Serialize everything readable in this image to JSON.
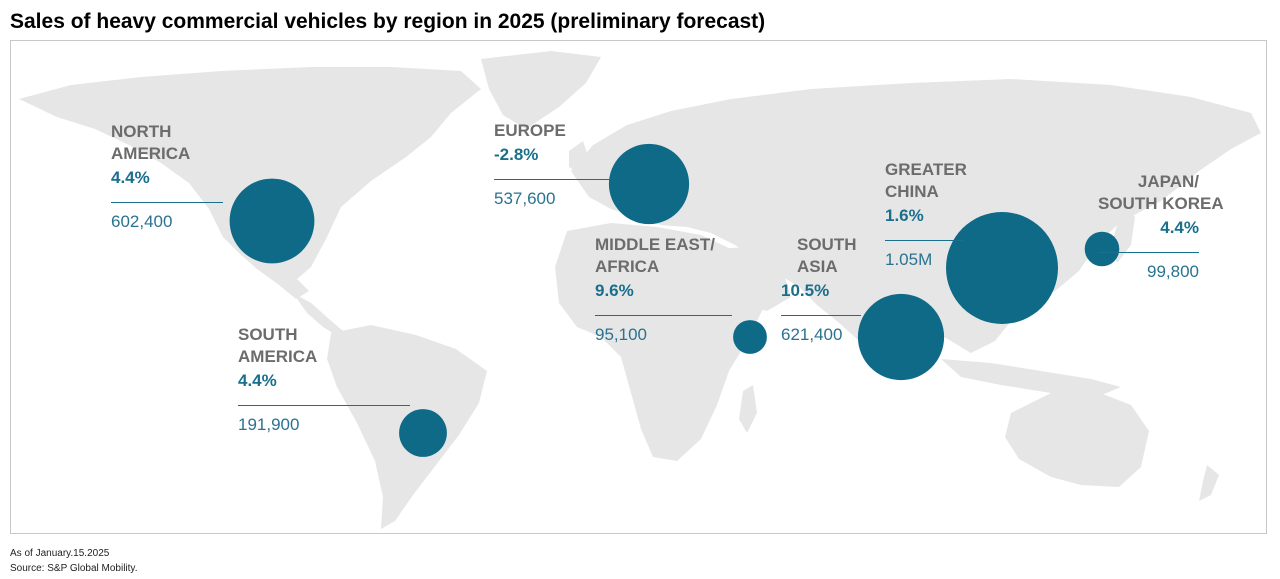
{
  "title": "Sales of heavy commercial vehicles by region in 2025 (preliminary forecast)",
  "footnote": {
    "as_of": "As of January.15.2025",
    "source": "Source: S&P Global Mobility."
  },
  "colors": {
    "bubble": "#0e6a87",
    "map": "#e6e6e6",
    "region_name": "#6c6c6c",
    "figure": "#1a6f8c"
  },
  "chart_data": {
    "type": "bubble-map",
    "title": "Sales of heavy commercial vehicles by region in 2025 (preliminary forecast)",
    "series": [
      {
        "region": "North America",
        "growth_pct": 4.4,
        "units": 602400
      },
      {
        "region": "South America",
        "growth_pct": 4.4,
        "units": 191900
      },
      {
        "region": "Europe",
        "growth_pct": -2.8,
        "units": 537600
      },
      {
        "region": "Middle East/Africa",
        "growth_pct": 9.6,
        "units": 95100
      },
      {
        "region": "South Asia",
        "growth_pct": 10.5,
        "units": 621400
      },
      {
        "region": "Greater China",
        "growth_pct": 1.6,
        "units": 1050000
      },
      {
        "region": "Japan/South Korea",
        "growth_pct": 4.4,
        "units": 99800
      }
    ]
  },
  "labels": {
    "na": {
      "line1": "NORTH",
      "line2": "AMERICA",
      "pct": "4.4%",
      "value": "602,400"
    },
    "sa": {
      "line1": "SOUTH",
      "line2": "AMERICA",
      "pct": "4.4%",
      "value": "191,900"
    },
    "eu": {
      "line1": "EUROPE",
      "pct": "-2.8%",
      "value": "537,600"
    },
    "mea": {
      "line1": "MIDDLE EAST/",
      "line2": "AFRICA",
      "pct": "9.6%",
      "value": "95,100"
    },
    "sas": {
      "line1": "SOUTH",
      "line2": "ASIA",
      "pct": "10.5%",
      "value": "621,400"
    },
    "gc": {
      "line1": "GREATER",
      "line2": "CHINA",
      "pct": "1.6%",
      "value": "1.05M"
    },
    "jsk": {
      "line1": "JAPAN/",
      "line2": "SOUTH KOREA",
      "pct": "4.4%",
      "value": "99,800"
    }
  }
}
